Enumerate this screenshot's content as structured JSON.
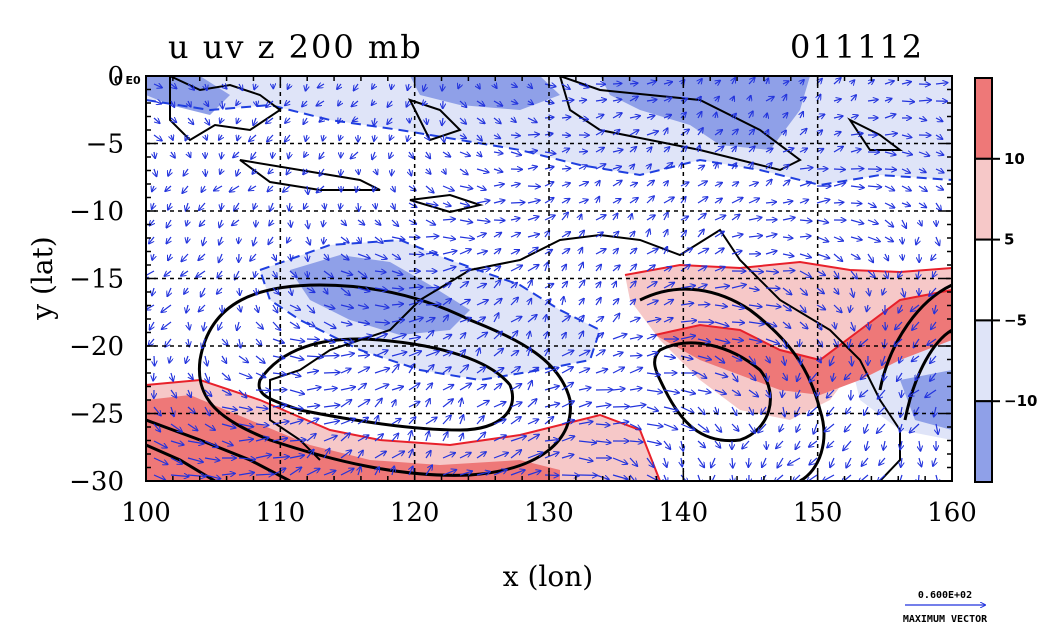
{
  "chart_data": {
    "type": "heatmap",
    "title": "u uv z 200 mb",
    "date_label": "011112",
    "xlabel": "x (lon)",
    "ylabel": "y (lat)",
    "xlim": [
      100,
      160
    ],
    "ylim": [
      -30,
      0
    ],
    "x_ticks": [
      "100",
      "110",
      "120",
      "130",
      "140",
      "150",
      "160"
    ],
    "y_ticks": [
      "0",
      "−5",
      "−10",
      "−15",
      "−20",
      "−25",
      "−30"
    ],
    "grid": true,
    "colorbar": {
      "levels": [
        -10,
        -5,
        5,
        10
      ],
      "labels": [
        "−10",
        "−5",
        "5",
        "10"
      ],
      "colors": [
        "#8fa0e8",
        "#dfe4f8",
        "#ffffff",
        "#f6c8c8",
        "#ee7878"
      ]
    },
    "corner_label": "0 E0",
    "vector_key": {
      "value_label": "0.600E+02",
      "caption": "MAXIMUM VECTOR"
    },
    "colors": {
      "positive_strong": "#ee7878",
      "positive_weak": "#f6c8c8",
      "negative_weak": "#dfe4f8",
      "negative_strong": "#8fa0e8",
      "contour_positive": "#e8202a",
      "contour_negative": "#1f3fe0",
      "height_contour": "#000000",
      "vectors": "#2233dd"
    }
  }
}
